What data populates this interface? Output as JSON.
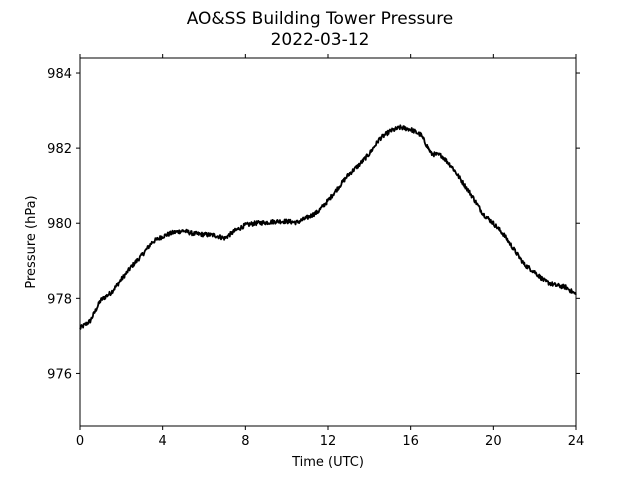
{
  "chart_data": {
    "type": "line",
    "title": "AO&SS Building Tower Pressure",
    "subtitle": "2022-03-12",
    "xlabel": "Time (UTC)",
    "ylabel": "Pressure (hPa)",
    "xlim": [
      0,
      24
    ],
    "ylim": [
      974.6,
      984.4
    ],
    "xticks": [
      0,
      4,
      8,
      12,
      16,
      20,
      24
    ],
    "yticks": [
      976,
      978,
      980,
      982,
      984
    ],
    "grid": false,
    "line_color": "#000000",
    "series": [
      {
        "x": [
          0,
          0.5,
          1,
          1.5,
          2,
          2.5,
          3,
          3.5,
          4,
          4.5,
          5,
          5.5,
          6,
          6.5,
          7,
          7.5,
          8,
          8.5,
          9,
          9.5,
          10,
          10.5,
          11,
          11.5,
          12,
          12.5,
          13,
          13.5,
          14,
          14.5,
          15,
          15.5,
          16,
          16.5,
          17,
          17.5,
          18,
          18.5,
          19,
          19.5,
          20,
          20.5,
          21,
          21.5,
          22,
          22.5,
          23,
          23.5,
          24
        ],
        "y": [
          977.2,
          977.4,
          977.95,
          978.15,
          978.5,
          978.85,
          979.15,
          979.5,
          979.65,
          979.75,
          979.8,
          979.72,
          979.7,
          979.68,
          979.6,
          979.8,
          979.95,
          980.0,
          980.02,
          980.05,
          980.05,
          980.02,
          980.15,
          980.3,
          980.6,
          980.95,
          981.3,
          981.55,
          981.85,
          982.25,
          982.45,
          982.55,
          982.5,
          982.35,
          981.85,
          981.8,
          981.5,
          981.1,
          980.7,
          980.25,
          980.0,
          979.7,
          979.3,
          978.9,
          978.7,
          978.45,
          978.35,
          978.3,
          978.1
        ]
      }
    ]
  }
}
